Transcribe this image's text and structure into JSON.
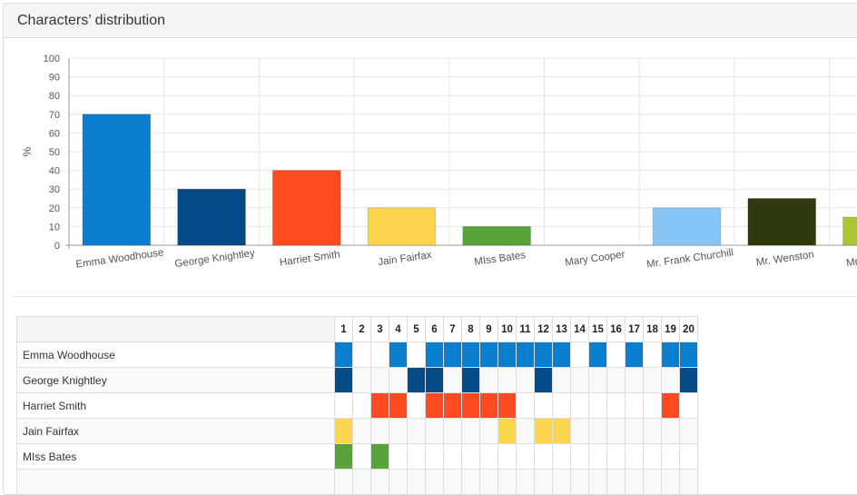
{
  "panel": {
    "title": "Characters’ distribution"
  },
  "chart_data": {
    "type": "bar",
    "categories": [
      "Emma Woodhouse",
      "George Knightley",
      "Harriet Smith",
      "Jain Fairfax",
      "MIss Bates",
      "Mary Cooper",
      "Mr. Frank Churchill",
      "Mr. Wenston",
      "Mrs Anne Wenston"
    ],
    "visible_labels": [
      "Emma Woodhouse",
      "George Knightley",
      "Harriet Smith",
      "Jain Fairfax",
      "MIss Bates",
      "Mary Cooper",
      "Mr. Frank Churchill",
      "Mr. Wenston",
      "Mrs Anne Wen"
    ],
    "values": [
      70,
      30,
      40,
      20,
      10,
      0,
      20,
      25,
      15
    ],
    "colors": [
      "#0a7fd0",
      "#044a87",
      "#fe4b22",
      "#fdd44e",
      "#58a33a",
      "#ffffff",
      "#86c5f6",
      "#2f3a0f",
      "#a7c632"
    ],
    "title": "",
    "xlabel": "",
    "ylabel": "%",
    "ylim": [
      0,
      100
    ],
    "yticks": [
      0,
      10,
      20,
      30,
      40,
      50,
      60,
      70,
      80,
      90,
      100
    ],
    "grid": true
  },
  "table": {
    "columns": [
      "1",
      "2",
      "3",
      "4",
      "5",
      "6",
      "7",
      "8",
      "9",
      "10",
      "11",
      "12",
      "13",
      "14",
      "15",
      "16",
      "17",
      "18",
      "19",
      "20"
    ],
    "rows": [
      {
        "name": "Emma Woodhouse",
        "color": "#0a7fd0",
        "chapters": [
          1,
          4,
          6,
          7,
          8,
          9,
          10,
          11,
          12,
          13,
          15,
          17,
          19,
          20
        ]
      },
      {
        "name": "George Knightley",
        "color": "#044a87",
        "chapters": [
          1,
          5,
          6,
          8,
          12,
          20
        ]
      },
      {
        "name": "Harriet Smith",
        "color": "#fe4b22",
        "chapters": [
          3,
          4,
          6,
          7,
          8,
          9,
          10,
          19
        ]
      },
      {
        "name": "Jain Fairfax",
        "color": "#fdd44e",
        "chapters": [
          1,
          10,
          12,
          13
        ]
      },
      {
        "name": "MIss Bates",
        "color": "#58a33a",
        "chapters": [
          1,
          3
        ]
      },
      {
        "name": "",
        "color": "#ffffff",
        "chapters": []
      }
    ]
  }
}
